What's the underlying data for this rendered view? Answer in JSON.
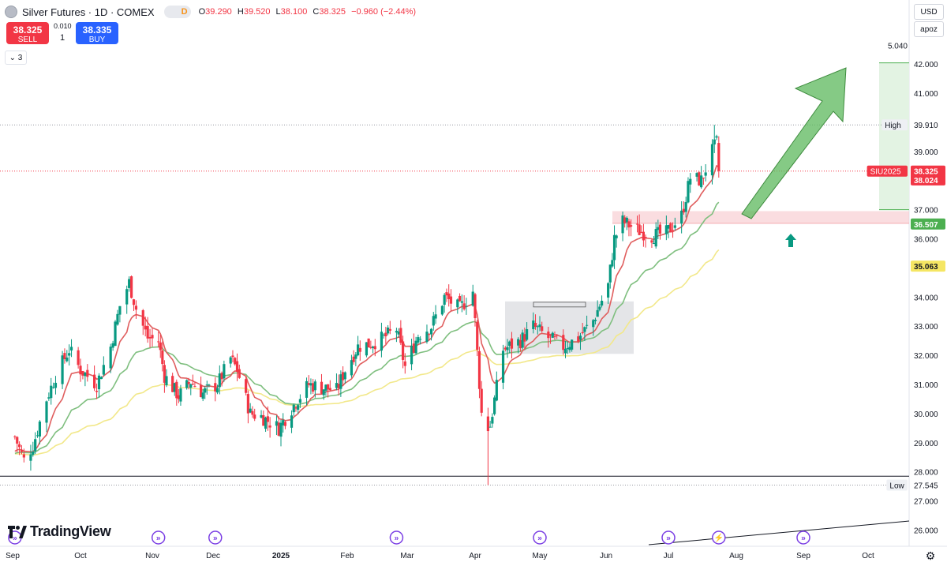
{
  "header": {
    "symbol": "Silver Futures · 1D · COMEX",
    "badge": "D",
    "ohlc": {
      "o_label": "O",
      "o": "39.290",
      "h_label": "H",
      "h": "39.520",
      "l_label": "L",
      "l": "38.100",
      "c_label": "C",
      "c": "38.325",
      "change": "−0.960 (−2.44%)"
    }
  },
  "trade": {
    "sell_price": "38.325",
    "sell_label": "SELL",
    "qty_step": "0.010",
    "qty": "1",
    "buy_price": "38.335",
    "buy_label": "BUY"
  },
  "collapse_label": "⌄ 3",
  "controls": {
    "currency": "USD",
    "scale": "apoz"
  },
  "logo": "TradingView",
  "colors": {
    "up": "#089981",
    "down": "#f23645",
    "ema_fast": "#e05e5e",
    "ema_mid": "#7fbf7f",
    "ema_slow": "#f2e88a",
    "target": "#5cb85c"
  },
  "chart_data": {
    "type": "candlestick",
    "title": "Silver Futures · 1D · COMEX",
    "price_axis": {
      "ticks": [
        "42.000",
        "41.000",
        "39.910",
        "39.000",
        "38.325",
        "38.024",
        "37.000",
        "36.507",
        "36.000",
        "35.063",
        "34.000",
        "33.000",
        "32.000",
        "31.000",
        "30.000",
        "29.000",
        "28.000",
        "27.545",
        "27.000",
        "26.000"
      ],
      "range": [
        25.7,
        42.8
      ]
    },
    "time_axis": {
      "labels": [
        "Sep",
        "Oct",
        "Nov",
        "Dec",
        "2025",
        "Feb",
        "Mar",
        "Apr",
        "May",
        "Jun",
        "Jul",
        "Aug",
        "Sep",
        "Oct"
      ]
    },
    "price_labels": [
      {
        "text": "39.910",
        "tag": "High",
        "value": 39.91,
        "style": "plain"
      },
      {
        "text": "38.325",
        "tag": "SIU2025",
        "value": 38.325,
        "style": "red"
      },
      {
        "text": "38.024",
        "value": 38.024,
        "style": "red"
      },
      {
        "text": "36.507",
        "value": 36.507,
        "style": "green"
      },
      {
        "text": "35.063",
        "value": 35.063,
        "style": "yellow"
      },
      {
        "text": "27.545",
        "tag": "Low",
        "value": 27.545,
        "style": "plain"
      }
    ],
    "target_label": "5.040",
    "target_range": [
      37.0,
      42.04
    ],
    "support_zone": [
      36.53,
      36.95
    ],
    "horizontal_line": 27.85,
    "consolidation_box": {
      "from": "May",
      "to": "Jun",
      "price_range": [
        32.05,
        33.85
      ]
    },
    "events": [
      "2024-09-02",
      "2024-11-04",
      "2024-12-02",
      "2025-02-24",
      "2025-05-01",
      "2025-07-01",
      "2025-07-24",
      "2025-09-01"
    ],
    "ohlc_anchors": [
      [
        "2024-09-02",
        29.2
      ],
      [
        "2024-09-06",
        28.4
      ],
      [
        "2024-09-10",
        28.9
      ],
      [
        "2024-09-16",
        30.5
      ],
      [
        "2024-09-20",
        31.3
      ],
      [
        "2024-09-26",
        32.2
      ],
      [
        "2024-10-01",
        31.5
      ],
      [
        "2024-10-08",
        31.0
      ],
      [
        "2024-10-14",
        32.3
      ],
      [
        "2024-10-18",
        33.7
      ],
      [
        "2024-10-22",
        34.5
      ],
      [
        "2024-10-25",
        33.6
      ],
      [
        "2024-10-30",
        32.6
      ],
      [
        "2024-11-04",
        32.5
      ],
      [
        "2024-11-07",
        31.3
      ],
      [
        "2024-11-14",
        30.6
      ],
      [
        "2024-11-20",
        31.1
      ],
      [
        "2024-11-26",
        30.7
      ],
      [
        "2024-12-03",
        31.0
      ],
      [
        "2024-12-09",
        31.9
      ],
      [
        "2024-12-12",
        31.5
      ],
      [
        "2024-12-18",
        30.0
      ],
      [
        "2024-12-23",
        29.9
      ],
      [
        "2024-12-31",
        29.5
      ],
      [
        "2025-01-08",
        30.4
      ],
      [
        "2025-01-14",
        31.0
      ],
      [
        "2025-01-20",
        30.9
      ],
      [
        "2025-01-27",
        30.8
      ],
      [
        "2025-01-31",
        31.5
      ],
      [
        "2025-02-06",
        32.3
      ],
      [
        "2025-02-12",
        32.4
      ],
      [
        "2025-02-18",
        32.6
      ],
      [
        "2025-02-24",
        32.9
      ],
      [
        "2025-02-28",
        31.6
      ],
      [
        "2025-03-06",
        32.7
      ],
      [
        "2025-03-12",
        33.0
      ],
      [
        "2025-03-18",
        34.0
      ],
      [
        "2025-03-25",
        33.6
      ],
      [
        "2025-03-31",
        34.2
      ],
      [
        "2025-04-04",
        30.0
      ],
      [
        "2025-04-08",
        29.6
      ],
      [
        "2025-04-14",
        32.2
      ],
      [
        "2025-04-22",
        32.5
      ],
      [
        "2025-04-28",
        33.0
      ],
      [
        "2025-05-05",
        32.6
      ],
      [
        "2025-05-12",
        32.3
      ],
      [
        "2025-05-19",
        32.6
      ],
      [
        "2025-05-26",
        33.2
      ],
      [
        "2025-06-02",
        34.4
      ],
      [
        "2025-06-05",
        36.0
      ],
      [
        "2025-06-09",
        36.6
      ],
      [
        "2025-06-16",
        36.3
      ],
      [
        "2025-06-23",
        36.1
      ],
      [
        "2025-06-30",
        36.2
      ],
      [
        "2025-07-07",
        36.8
      ],
      [
        "2025-07-11",
        38.1
      ],
      [
        "2025-07-16",
        38.0
      ],
      [
        "2025-07-21",
        39.0
      ],
      [
        "2025-07-23",
        39.3
      ],
      [
        "2025-07-24",
        38.325
      ]
    ]
  }
}
